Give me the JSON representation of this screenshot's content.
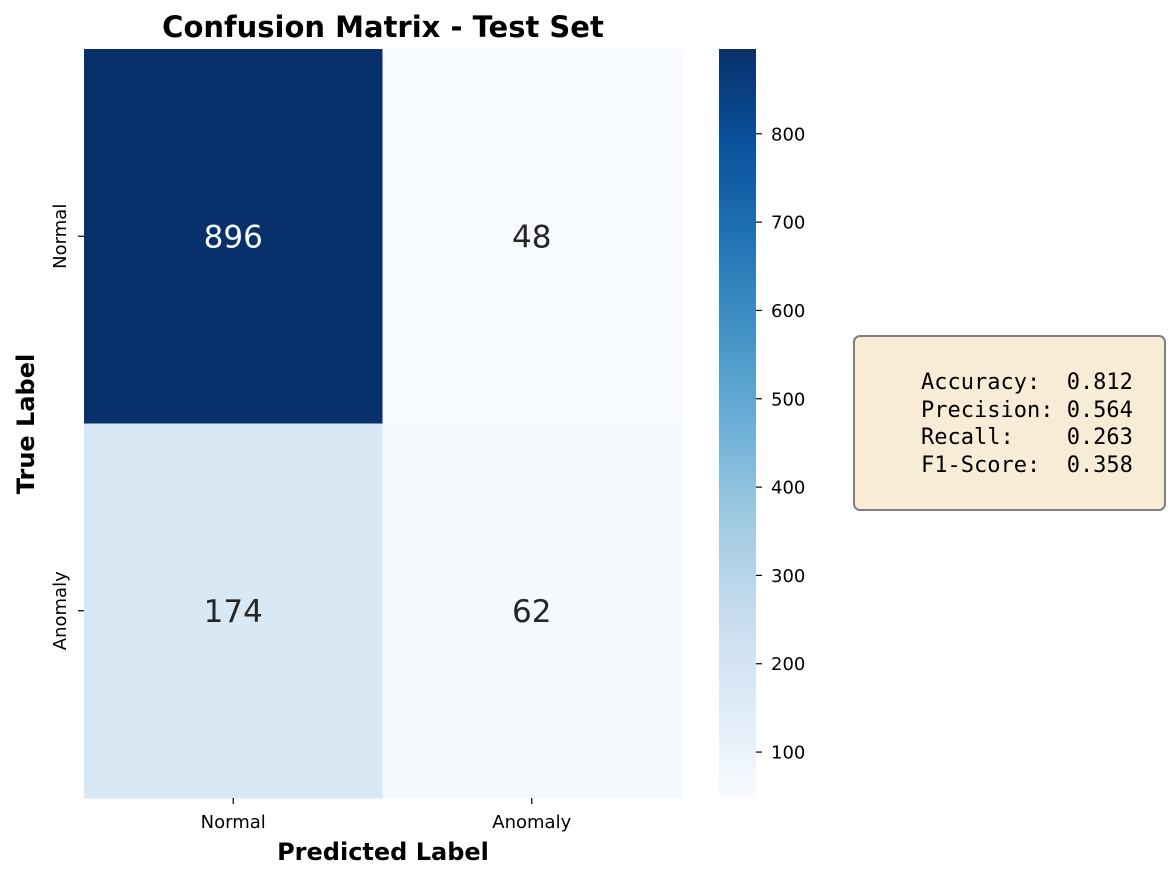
{
  "chart_data": {
    "type": "heatmap",
    "title": "Confusion Matrix - Test Set",
    "xlabel": "Predicted Label",
    "ylabel": "True Label",
    "x_categories": [
      "Normal",
      "Anomaly"
    ],
    "y_categories": [
      "Normal",
      "Anomaly"
    ],
    "values": [
      [
        896,
        48
      ],
      [
        174,
        62
      ]
    ],
    "colormap": "Blues",
    "colorbar": {
      "range": [
        48,
        896
      ],
      "ticks": [
        100,
        200,
        300,
        400,
        500,
        600,
        700,
        800
      ],
      "tick_labels": [
        "100",
        "200",
        "300",
        "400",
        "500",
        "600",
        "700",
        "800"
      ]
    },
    "annotation_colors": {
      "dark_cell": "#f7fbff",
      "light_cell": "#262626"
    }
  },
  "metrics": {
    "lines": [
      "Accuracy:  0.812",
      "Precision: 0.564",
      "Recall:    0.263",
      "F1-Score:  0.358"
    ]
  },
  "colors": {
    "box_fill": "#f9ecd6",
    "box_border": "#7f7f7f"
  }
}
